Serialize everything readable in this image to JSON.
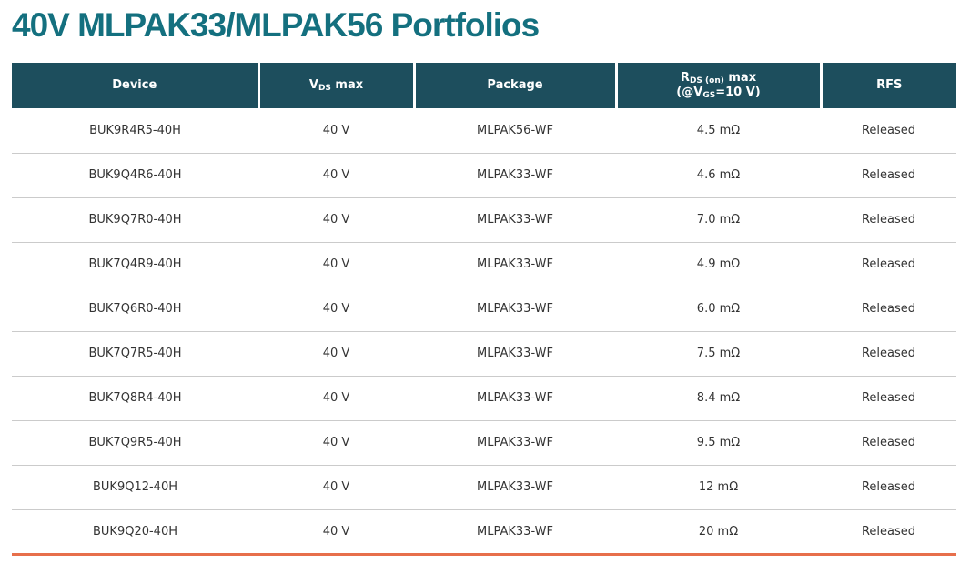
{
  "colors": {
    "title": "#14707F",
    "header_bg": "#1D4E5D",
    "header_text": "#FFFFFF",
    "row_text": "#333333",
    "row_divider": "#CBCBCB",
    "bottom_border": "#E76F4B",
    "background": "#FFFFFF"
  },
  "page": {
    "title": "40V MLPAK33/MLPAK56 Portfolios"
  },
  "table": {
    "header": {
      "device": "Device",
      "vds": {
        "base": "V",
        "sub": "DS",
        "rest": " max"
      },
      "package": "Package",
      "rds": {
        "line1": {
          "base": "R",
          "sub": "DS (on)",
          "rest": " max"
        },
        "line2": {
          "open": "(@V",
          "sub": "GS",
          "close": "=10 V)"
        }
      },
      "rfs": "RFS"
    },
    "rows": [
      {
        "device": "BUK9R4R5-40H",
        "vds_max": "40 V",
        "package": "MLPAK56-WF",
        "rds_on_max": "4.5 mΩ",
        "rfs": "Released"
      },
      {
        "device": "BUK9Q4R6-40H",
        "vds_max": "40 V",
        "package": "MLPAK33-WF",
        "rds_on_max": "4.6 mΩ",
        "rfs": "Released"
      },
      {
        "device": "BUK9Q7R0-40H",
        "vds_max": "40 V",
        "package": "MLPAK33-WF",
        "rds_on_max": "7.0 mΩ",
        "rfs": "Released"
      },
      {
        "device": "BUK7Q4R9-40H",
        "vds_max": "40 V",
        "package": "MLPAK33-WF",
        "rds_on_max": "4.9 mΩ",
        "rfs": "Released"
      },
      {
        "device": "BUK7Q6R0-40H",
        "vds_max": "40 V",
        "package": "MLPAK33-WF",
        "rds_on_max": "6.0 mΩ",
        "rfs": "Released"
      },
      {
        "device": "BUK7Q7R5-40H",
        "vds_max": "40 V",
        "package": "MLPAK33-WF",
        "rds_on_max": "7.5 mΩ",
        "rfs": "Released"
      },
      {
        "device": "BUK7Q8R4-40H",
        "vds_max": "40 V",
        "package": "MLPAK33-WF",
        "rds_on_max": "8.4 mΩ",
        "rfs": "Released"
      },
      {
        "device": "BUK7Q9R5-40H",
        "vds_max": "40 V",
        "package": "MLPAK33-WF",
        "rds_on_max": "9.5 mΩ",
        "rfs": "Released"
      },
      {
        "device": "BUK9Q12-40H",
        "vds_max": "40 V",
        "package": "MLPAK33-WF",
        "rds_on_max": "12 mΩ",
        "rfs": "Released"
      },
      {
        "device": "BUK9Q20-40H",
        "vds_max": "40 V",
        "package": "MLPAK33-WF",
        "rds_on_max": "20 mΩ",
        "rfs": "Released"
      }
    ]
  }
}
